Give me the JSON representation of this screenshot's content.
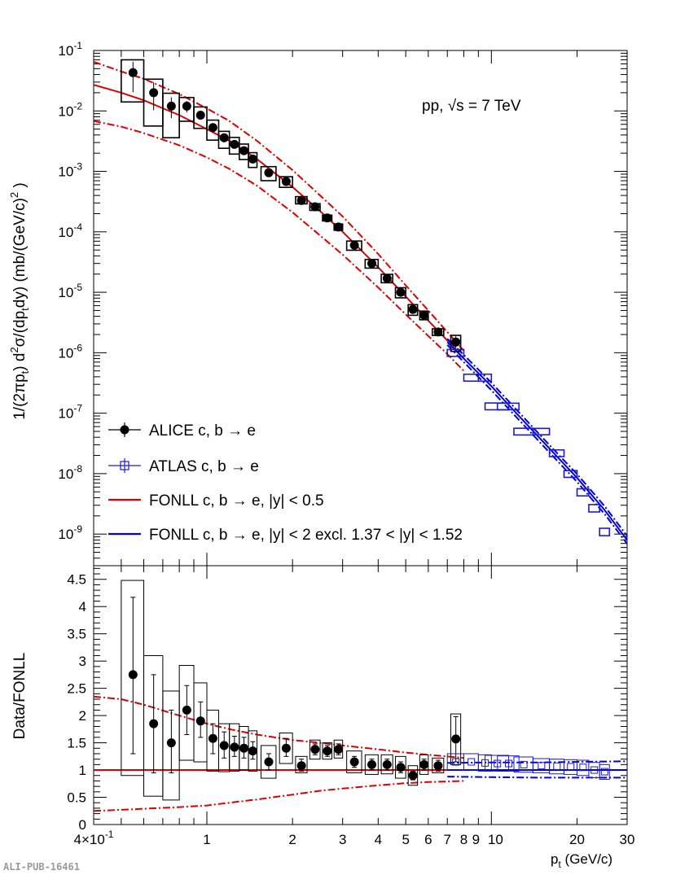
{
  "watermark": "ALI-PUB-16461",
  "energy_label": "pp, √s = 7 TeV",
  "colors": {
    "alice": "#000000",
    "atlas": "#1a1ad0",
    "fonll_mid": "#dd0000",
    "fonll_atlas": "#0000dd"
  },
  "legend": [
    {
      "key": "alice",
      "label": "ALICE c, b → e"
    },
    {
      "key": "atlas",
      "label": "ATLAS c, b → e"
    },
    {
      "key": "fonll_mid",
      "label": "FONLL c, b → e, |y| < 0.5"
    },
    {
      "key": "fonll_atlas",
      "label": "FONLL c, b → e, |y| < 2 excl. 1.37 < |y| < 1.52"
    }
  ],
  "chart_data": [
    {
      "type": "scatter",
      "panel": "spectrum",
      "ylabel": "1/(2πp_t) d²σ/(dp_t dy) (mb/(GeV/c)²)",
      "xlabel": "",
      "xscale": "log",
      "yscale": "log",
      "xlim": [
        0.4,
        30
      ],
      "ylim": [
        3e-10,
        0.1
      ],
      "y_ticks": [
        "10^-9",
        "10^-8",
        "10^-7",
        "10^-6",
        "10^-5",
        "10^-4",
        "10^-3",
        "10^-2",
        "10^-1"
      ],
      "series": [
        {
          "name": "ALICE c, b → e",
          "key": "alice",
          "x": [
            0.55,
            0.65,
            0.75,
            0.85,
            0.95,
            1.05,
            1.15,
            1.25,
            1.35,
            1.45,
            1.65,
            1.9,
            2.15,
            2.4,
            2.65,
            2.9,
            3.3,
            3.8,
            4.3,
            4.8,
            5.3,
            5.8,
            6.5,
            7.5
          ],
          "y": [
            0.043,
            0.02,
            0.012,
            0.012,
            0.0085,
            0.0053,
            0.0036,
            0.0028,
            0.0022,
            0.0016,
            0.00095,
            0.00068,
            0.00033,
            0.00026,
            0.00017,
            0.00012,
            6e-05,
            3e-05,
            1.7e-05,
            1e-05,
            5.2e-06,
            4.2e-06,
            2.2e-06,
            1.5e-06
          ]
        },
        {
          "name": "ATLAS c, b → e",
          "key": "atlas",
          "x": [
            7.5,
            8.5,
            9.5,
            10.5,
            11.5,
            13,
            15,
            17,
            19,
            21,
            23,
            25
          ],
          "y": [
            1e-06,
            3.9e-07,
            3.9e-07,
            1.3e-07,
            1.3e-07,
            5e-08,
            5e-08,
            2.2e-08,
            1e-08,
            5e-09,
            2.7e-09,
            1.1e-09
          ]
        },
        {
          "name": "FONLL c, b → e, |y| < 0.5",
          "key": "fonll_mid",
          "x": [
            0.4,
            0.5,
            0.6,
            0.8,
            1,
            1.2,
            1.5,
            2,
            2.5,
            3,
            4,
            5,
            6,
            7,
            8
          ],
          "y": [
            0.027,
            0.02,
            0.015,
            0.0085,
            0.005,
            0.0032,
            0.0016,
            0.00055,
            0.00022,
            0.0001,
            2.6e-05,
            8.5e-06,
            3.4e-06,
            1.6e-06,
            8e-07
          ],
          "y_low": [
            0.0068,
            0.0055,
            0.0043,
            0.0027,
            0.0017,
            0.0011,
            0.00058,
            0.00021,
            8.7e-05,
            4.2e-05,
            1.2e-05,
            4.3e-06,
            1.9e-06,
            9.5e-07,
            5e-07
          ],
          "y_high": [
            0.065,
            0.045,
            0.034,
            0.019,
            0.011,
            0.0068,
            0.0032,
            0.00105,
            0.0004,
            0.00018,
            4.3e-05,
            1.3e-05,
            5e-06,
            2.2e-06,
            1.08e-06
          ]
        },
        {
          "name": "FONLL c, b → e, |y| < 2 excl. 1.37 < |y| < 1.52",
          "key": "fonll_atlas",
          "x": [
            7,
            8,
            10,
            12,
            15,
            20,
            25,
            30
          ],
          "y": [
            1.5e-06,
            8e-07,
            2.8e-07,
            1.1e-07,
            3.6e-08,
            8.5e-09,
            2.5e-09,
            8e-10
          ],
          "y_low": [
            1.35e-06,
            7e-07,
            2.4e-07,
            9.5e-08,
            3.1e-08,
            7.3e-09,
            2.15e-09,
            6.9e-10
          ],
          "y_high": [
            1.7e-06,
            9.2e-07,
            3.2e-07,
            1.27e-07,
            4.1e-08,
            9.8e-09,
            2.9e-09,
            9.3e-10
          ]
        }
      ]
    },
    {
      "type": "scatter",
      "panel": "ratio",
      "ylabel": "Data/FONLL",
      "xlabel": "p_t (GeV/c)",
      "xscale": "log",
      "xlim": [
        0.4,
        30
      ],
      "ylim": [
        0,
        4.75
      ],
      "x_ticks": [
        "4×10^-1",
        "1",
        "2",
        "3",
        "4",
        "5",
        "6",
        "7",
        "8",
        "9",
        "10",
        "20",
        "30"
      ],
      "y_ticks": [
        "0",
        "0.5",
        "1",
        "1.5",
        "2",
        "2.5",
        "3",
        "3.5",
        "4",
        "4.5"
      ],
      "series": [
        {
          "name": "ALICE c, b → e",
          "key": "alice",
          "x": [
            0.55,
            0.65,
            0.75,
            0.85,
            0.95,
            1.05,
            1.15,
            1.25,
            1.35,
            1.45,
            1.65,
            1.9,
            2.15,
            2.4,
            2.65,
            2.9,
            3.3,
            3.8,
            4.3,
            4.8,
            5.3,
            5.8,
            6.5,
            7.5
          ],
          "y": [
            2.75,
            1.85,
            1.5,
            2.1,
            1.9,
            1.58,
            1.45,
            1.42,
            1.4,
            1.35,
            1.15,
            1.4,
            1.08,
            1.38,
            1.35,
            1.38,
            1.15,
            1.1,
            1.1,
            1.05,
            0.9,
            1.1,
            1.08,
            1.57
          ],
          "box_low": [
            0.9,
            0.52,
            0.45,
            1.18,
            1.15,
            0.98,
            0.97,
            0.98,
            1.0,
            0.98,
            0.85,
            1.12,
            0.95,
            1.2,
            1.2,
            1.22,
            0.95,
            0.92,
            0.93,
            0.85,
            0.72,
            0.92,
            0.95,
            1.1
          ],
          "box_high": [
            4.48,
            3.1,
            2.45,
            2.92,
            2.6,
            2.1,
            1.85,
            1.85,
            1.8,
            1.72,
            1.45,
            1.68,
            1.25,
            1.55,
            1.5,
            1.55,
            1.35,
            1.28,
            1.28,
            1.25,
            1.08,
            1.28,
            1.22,
            2.03
          ],
          "err_low": [
            1.3,
            0.95,
            0.95,
            1.65,
            1.6,
            1.3,
            1.22,
            1.25,
            1.22,
            1.2,
            1.0,
            1.25,
            0.98,
            1.28,
            1.25,
            1.28,
            1.05,
            1.0,
            1.0,
            0.95,
            0.82,
            1.0,
            0.98,
            1.15
          ],
          "err_high": [
            4.17,
            2.75,
            2.1,
            2.55,
            2.25,
            1.85,
            1.7,
            1.62,
            1.6,
            1.52,
            1.3,
            1.58,
            1.2,
            1.48,
            1.45,
            1.48,
            1.25,
            1.2,
            1.2,
            1.15,
            0.98,
            1.2,
            1.18,
            1.98
          ]
        },
        {
          "name": "ATLAS c, b → e",
          "key": "atlas",
          "x": [
            7.5,
            8.5,
            9.5,
            10.5,
            11.5,
            13,
            15,
            17,
            19,
            21,
            23,
            25
          ],
          "y": [
            1.15,
            1.15,
            1.13,
            1.12,
            1.12,
            1.1,
            1.08,
            1.07,
            1.06,
            1.05,
            1.0,
            0.97
          ],
          "box_low": [
            1.0,
            1.0,
            0.98,
            0.98,
            0.98,
            0.96,
            0.95,
            0.93,
            0.92,
            0.9,
            0.86,
            0.83
          ],
          "box_high": [
            1.3,
            1.3,
            1.28,
            1.27,
            1.26,
            1.24,
            1.21,
            1.2,
            1.19,
            1.18,
            1.14,
            1.1
          ]
        },
        {
          "name": "FONLL c, b → e, |y| < 0.5",
          "key": "fonll_mid",
          "x": [
            0.4,
            0.5,
            0.6,
            0.8,
            1,
            1.2,
            1.5,
            2,
            2.5,
            3,
            4,
            5,
            6,
            7,
            8
          ],
          "y_low": [
            0.25,
            0.27,
            0.29,
            0.32,
            0.35,
            0.4,
            0.46,
            0.55,
            0.62,
            0.66,
            0.72,
            0.76,
            0.78,
            0.79,
            0.8
          ],
          "y_high": [
            2.35,
            2.3,
            2.2,
            2.0,
            1.85,
            1.75,
            1.65,
            1.55,
            1.5,
            1.45,
            1.38,
            1.32,
            1.28,
            1.25,
            1.22
          ]
        },
        {
          "name": "FONLL c, b → e, |y| < 2 excl. 1.37 < |y| < 1.52",
          "key": "fonll_atlas",
          "x": [
            7,
            10,
            15,
            20,
            30
          ],
          "y_low": [
            0.88,
            0.87,
            0.86,
            0.86,
            0.86
          ],
          "y_high": [
            1.13,
            1.14,
            1.14,
            1.15,
            1.16
          ]
        }
      ]
    }
  ]
}
